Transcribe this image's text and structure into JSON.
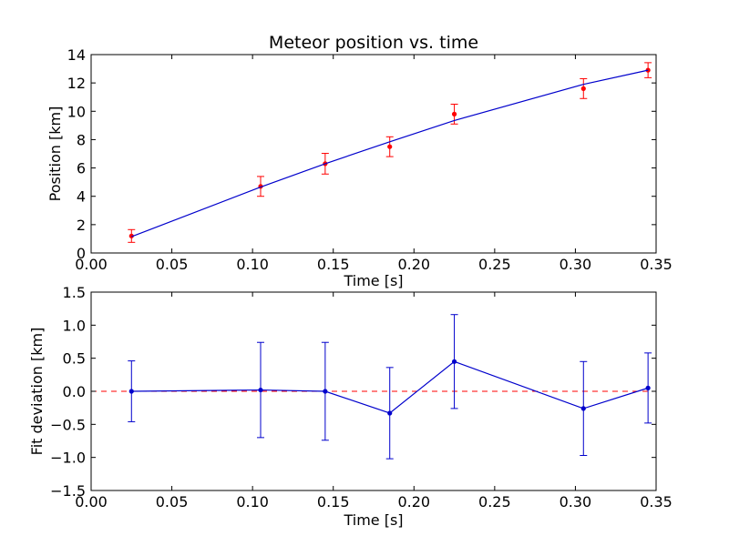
{
  "chart_data": [
    {
      "type": "scatter",
      "title": "Meteor position vs. time",
      "xlabel": "Time [s]",
      "ylabel": "Position [km]",
      "xlim": [
        0,
        0.35
      ],
      "ylim": [
        0,
        14
      ],
      "xticks": [
        "0.00",
        "0.05",
        "0.10",
        "0.15",
        "0.20",
        "0.25",
        "0.30",
        "0.35"
      ],
      "yticks": [
        "0",
        "2",
        "4",
        "6",
        "8",
        "10",
        "12",
        "14"
      ],
      "grid": false,
      "series": [
        {
          "kind": "errorbar",
          "color": "#ff0000",
          "x": [
            0.025,
            0.105,
            0.145,
            0.185,
            0.225,
            0.305,
            0.345
          ],
          "y": [
            1.2,
            4.7,
            6.3,
            7.5,
            9.8,
            11.6,
            12.9
          ],
          "err": [
            0.45,
            0.7,
            0.73,
            0.7,
            0.7,
            0.7,
            0.53
          ]
        },
        {
          "kind": "line",
          "color": "#0000cc",
          "x": [
            0.025,
            0.105,
            0.145,
            0.185,
            0.225,
            0.305,
            0.345
          ],
          "y": [
            1.15,
            4.65,
            6.3,
            7.85,
            9.35,
            11.9,
            12.9
          ]
        }
      ]
    },
    {
      "type": "line",
      "title": "",
      "xlabel": "Time [s]",
      "ylabel": "Fit deviation [km]",
      "xlim": [
        0,
        0.35
      ],
      "ylim": [
        -1.5,
        1.5
      ],
      "xticks": [
        "0.00",
        "0.05",
        "0.10",
        "0.15",
        "0.20",
        "0.25",
        "0.30",
        "0.35"
      ],
      "yticks": [
        "−1.5",
        "−1.0",
        "−0.5",
        "0.0",
        "0.5",
        "1.0",
        "1.5"
      ],
      "grid": false,
      "reference_line": {
        "y": 0,
        "color": "#ff0000",
        "style": "dashed"
      },
      "series": [
        {
          "kind": "errorbar-line",
          "color": "#0000cc",
          "x": [
            0.025,
            0.105,
            0.145,
            0.185,
            0.225,
            0.305,
            0.345
          ],
          "y": [
            0.0,
            0.02,
            0.0,
            -0.33,
            0.45,
            -0.26,
            0.05
          ],
          "err": [
            0.46,
            0.72,
            0.74,
            0.69,
            0.71,
            0.71,
            0.53
          ]
        }
      ]
    }
  ]
}
